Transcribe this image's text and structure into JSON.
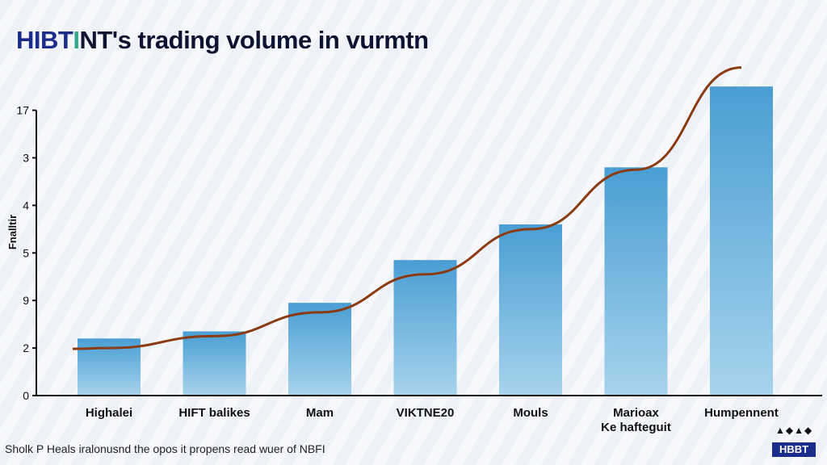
{
  "title": {
    "part1": "HIBT",
    "part2": "I",
    "part3": "NT's trading volume in vurmtn"
  },
  "caption": "Sholk P Heals iralonusnd the opos it propens read wuer of NBFI",
  "logo": {
    "text": "HBBT"
  },
  "colors": {
    "bar_top": "#4a9ed4",
    "bar_bottom": "#a6d3ec",
    "trend": "#8a3b12",
    "axis": "#111111"
  },
  "chart_data": {
    "type": "bar",
    "title": "HIBTINT's trading volume in vurmtn",
    "xlabel": "",
    "ylabel": "Fnalltir",
    "ylim": [
      0,
      6.6
    ],
    "y_ticks": [
      {
        "value": 0,
        "label": "0"
      },
      {
        "value": 1,
        "label": "2"
      },
      {
        "value": 2,
        "label": "9"
      },
      {
        "value": 3,
        "label": "5"
      },
      {
        "value": 4,
        "label": "4"
      },
      {
        "value": 5,
        "label": "3"
      },
      {
        "value": 6,
        "label": "17"
      }
    ],
    "categories": [
      [
        "Highalei"
      ],
      [
        "HIFT balikes"
      ],
      [
        "Mam"
      ],
      [
        "VIKTNE20"
      ],
      [
        "Mouls"
      ],
      [
        "Marioax",
        "Ke hafteguit"
      ],
      [
        "Humpennent"
      ]
    ],
    "values": [
      1.2,
      1.35,
      1.95,
      2.85,
      3.6,
      4.8,
      6.5
    ],
    "trend_line": [
      1.0,
      1.25,
      1.75,
      2.55,
      3.5,
      4.75,
      6.9
    ],
    "grid": false,
    "legend": "none"
  }
}
